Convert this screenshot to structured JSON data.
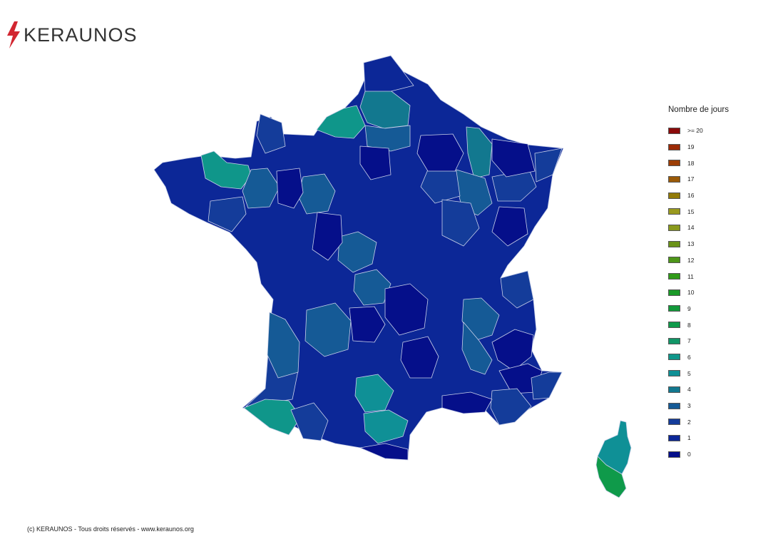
{
  "brand": {
    "name": "KERAUNOS",
    "accent": "#d22630"
  },
  "legend": {
    "title": "Nombre de jours",
    "items": [
      {
        "label": ">= 20",
        "color": "#8b0a0a"
      },
      {
        "label": "19",
        "color": "#9b2a06"
      },
      {
        "label": "18",
        "color": "#9c3d05"
      },
      {
        "label": "17",
        "color": "#9a5a08"
      },
      {
        "label": "16",
        "color": "#917a08"
      },
      {
        "label": "15",
        "color": "#9a9a1e"
      },
      {
        "label": "14",
        "color": "#8a9a1c"
      },
      {
        "label": "13",
        "color": "#6a9218"
      },
      {
        "label": "12",
        "color": "#4d9618"
      },
      {
        "label": "11",
        "color": "#309a18"
      },
      {
        "label": "10",
        "color": "#1a9a28"
      },
      {
        "label": "9",
        "color": "#12993a"
      },
      {
        "label": "8",
        "color": "#0f9a4a"
      },
      {
        "label": "7",
        "color": "#119667"
      },
      {
        "label": "6",
        "color": "#0f968a"
      },
      {
        "label": "5",
        "color": "#0f9096"
      },
      {
        "label": "4",
        "color": "#12788f"
      },
      {
        "label": "3",
        "color": "#155a96"
      },
      {
        "label": "2",
        "color": "#143c9a"
      },
      {
        "label": "1",
        "color": "#0c2797"
      },
      {
        "label": "0",
        "color": "#050f8a"
      }
    ]
  },
  "footer": {
    "text": "(c) KERAUNOS - Tous droits réservés - www.keraunos.org"
  }
}
